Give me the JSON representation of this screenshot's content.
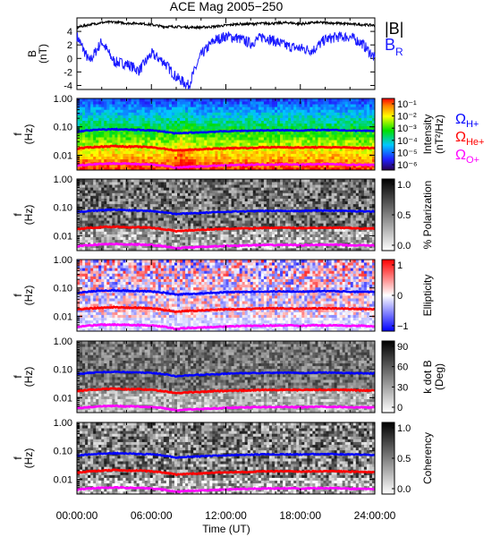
{
  "title": "ACE Mag 2005−250",
  "colors": {
    "B_total": "#000000",
    "B_R": "#1a1aff",
    "H": "#0000ff",
    "He": "#ff0000",
    "O": "#ff00ff"
  },
  "legend": {
    "B_total": "|B|",
    "B_R_main": "B",
    "B_R_sub": "R",
    "omega": "Ω",
    "H": "H+",
    "He": "He+",
    "O": "O+"
  },
  "xaxis": {
    "label": "Time (UT)",
    "ticks": [
      "00:00:00",
      "06:00:00",
      "12:00:00",
      "18:00:00",
      "24:00:00"
    ],
    "range_hours": [
      0,
      24
    ]
  },
  "chart_data": [
    {
      "type": "line",
      "panel": "magnetic-field",
      "ylabel": "B",
      "yunit": "(nT)",
      "ylim": [
        -4.6,
        6
      ],
      "yticks": [
        "4",
        "2",
        "0",
        "-2",
        "-4"
      ],
      "series": [
        {
          "name": "|B|",
          "x_hours": [
            0,
            1,
            2,
            3,
            4,
            5,
            6,
            7,
            8,
            9,
            10,
            11,
            12,
            13,
            14,
            15,
            16,
            17,
            18,
            19,
            20,
            21,
            22,
            23,
            24
          ],
          "values": [
            4.6,
            5.0,
            5.3,
            5.4,
            5.2,
            5.2,
            5.0,
            4.7,
            4.7,
            4.6,
            4.6,
            4.7,
            4.9,
            5.1,
            5.1,
            5.2,
            5.2,
            5.3,
            5.1,
            5.3,
            5.3,
            5.2,
            5.1,
            5.0,
            4.9
          ]
        },
        {
          "name": "B_R",
          "x_hours": [
            0,
            1,
            2,
            3,
            4,
            5,
            6,
            7,
            8,
            9,
            10,
            11,
            12,
            13,
            14,
            15,
            16,
            17,
            18,
            19,
            20,
            21,
            22,
            23,
            24
          ],
          "values": [
            3.3,
            -0.5,
            2.5,
            -0.5,
            -0.8,
            -1.8,
            0.7,
            -0.5,
            -2.8,
            -4.0,
            0.5,
            2.6,
            3.3,
            3.0,
            2.2,
            3.3,
            2.5,
            1.8,
            1.5,
            1.2,
            2.8,
            3.2,
            3.2,
            2.2,
            0.0
          ]
        }
      ]
    },
    {
      "type": "heatmap",
      "panel": "power-spectrum",
      "ylabel": "f",
      "yunit": "(Hz)",
      "yscale": "log",
      "ylim": [
        0.003,
        1.0
      ],
      "yticks": [
        "1.00",
        "0.10",
        "0.01"
      ],
      "colorbar": {
        "label": "Intensity",
        "unit": "(nT²/Hz)",
        "ticks": [
          "10⁻¹",
          "10⁻²",
          "10⁻³",
          "10⁻⁴",
          "10⁻⁵",
          "10⁻⁶"
        ],
        "scale": "rainbow"
      }
    },
    {
      "type": "heatmap",
      "panel": "polarization",
      "ylabel": "f",
      "yunit": "(Hz)",
      "yscale": "log",
      "ylim": [
        0.003,
        1.0
      ],
      "yticks": [
        "1.00",
        "0.10",
        "0.01"
      ],
      "colorbar": {
        "label": "% Polarization",
        "ticks": [
          "1.0",
          "0.5",
          "0.0"
        ],
        "scale": "grayscale"
      }
    },
    {
      "type": "heatmap",
      "panel": "ellipticity",
      "ylabel": "f",
      "yunit": "(Hz)",
      "yscale": "log",
      "ylim": [
        0.003,
        1.0
      ],
      "yticks": [
        "1.00",
        "0.10",
        "0.01"
      ],
      "colorbar": {
        "label": "Ellipticity",
        "ticks": [
          "1",
          "0",
          "−1"
        ],
        "scale": "blue-white-red"
      }
    },
    {
      "type": "heatmap",
      "panel": "k-dot-b",
      "ylabel": "f",
      "yunit": "(Hz)",
      "yscale": "log",
      "ylim": [
        0.003,
        1.0
      ],
      "yticks": [
        "1.00",
        "0.10",
        "0.01"
      ],
      "colorbar": {
        "label": "k dot B",
        "unit": "(Deg)",
        "ticks": [
          "90",
          "60",
          "30",
          "0"
        ],
        "scale": "grayscale"
      }
    },
    {
      "type": "heatmap",
      "panel": "coherency",
      "ylabel": "f",
      "yunit": "(Hz)",
      "yscale": "log",
      "ylim": [
        0.003,
        1.0
      ],
      "yticks": [
        "1.00",
        "0.10",
        "0.01"
      ],
      "colorbar": {
        "label": "Coherency",
        "ticks": [
          "1.0",
          "0.5",
          "0.0"
        ],
        "scale": "grayscale"
      }
    }
  ],
  "gyrofrequencies": {
    "x_hours": [
      0,
      1,
      2,
      3,
      4,
      5,
      6,
      7,
      8,
      9,
      10,
      11,
      12,
      13,
      14,
      15,
      16,
      17,
      18,
      19,
      20,
      21,
      22,
      23,
      24
    ],
    "H": [
      0.068,
      0.075,
      0.08,
      0.082,
      0.08,
      0.078,
      0.075,
      0.068,
      0.058,
      0.062,
      0.064,
      0.067,
      0.07,
      0.072,
      0.073,
      0.075,
      0.075,
      0.076,
      0.074,
      0.077,
      0.077,
      0.076,
      0.074,
      0.073,
      0.072
    ],
    "He": [
      0.017,
      0.019,
      0.02,
      0.021,
      0.02,
      0.02,
      0.019,
      0.017,
      0.0145,
      0.0155,
      0.016,
      0.017,
      0.0175,
      0.018,
      0.018,
      0.019,
      0.019,
      0.019,
      0.0185,
      0.019,
      0.019,
      0.019,
      0.0185,
      0.018,
      0.018
    ],
    "O": [
      0.0043,
      0.0047,
      0.005,
      0.0051,
      0.005,
      0.0049,
      0.0047,
      0.0043,
      0.0036,
      0.0039,
      0.004,
      0.0042,
      0.0044,
      0.0045,
      0.0046,
      0.0047,
      0.0047,
      0.0048,
      0.0046,
      0.0048,
      0.0048,
      0.0048,
      0.0046,
      0.0046,
      0.0045
    ]
  }
}
